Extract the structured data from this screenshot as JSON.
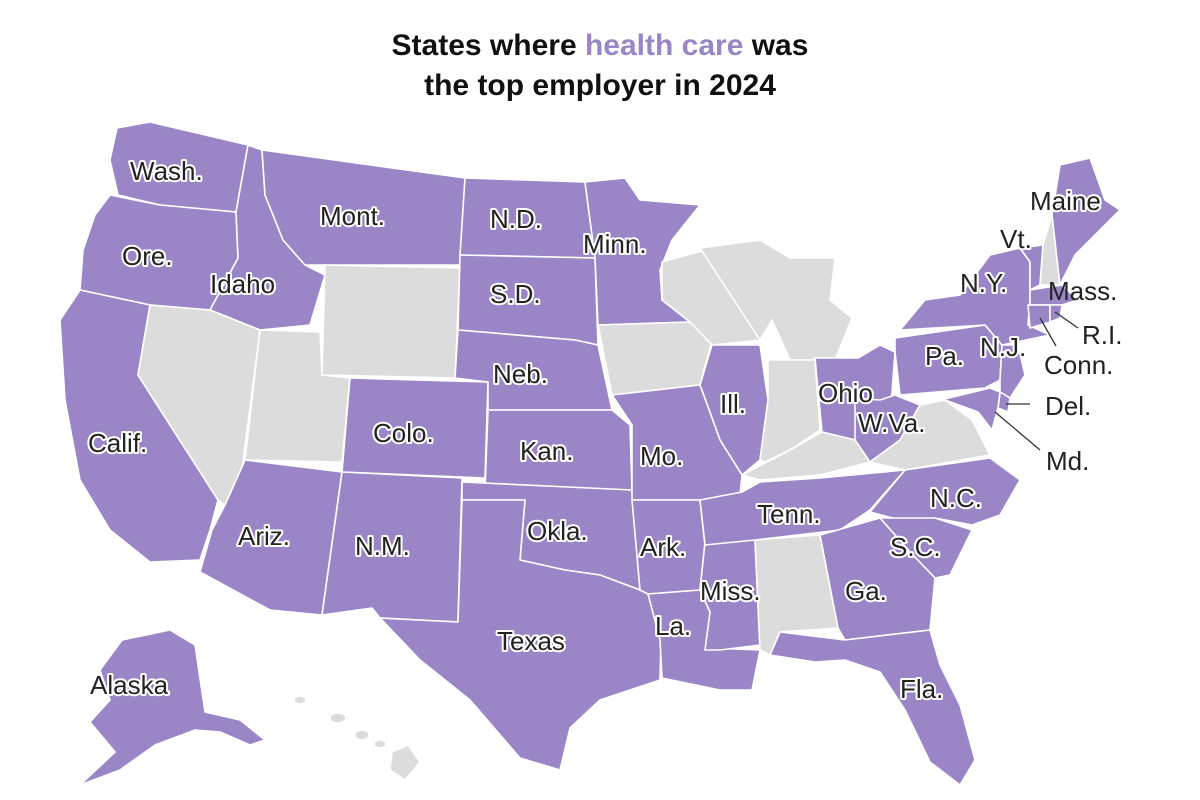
{
  "title": {
    "prefix": "States where ",
    "highlight": "health care",
    "suffix_line1": " was",
    "line2": "the top employer in 2024"
  },
  "colors": {
    "highlight": "#9a85c7",
    "other": "#dcdcdc",
    "border": "#ffffff",
    "label": "#222222"
  },
  "highlighted_states": [
    "Wash.",
    "Ore.",
    "Calif.",
    "Idaho",
    "Mont.",
    "N.D.",
    "S.D.",
    "Neb.",
    "Colo.",
    "Kan.",
    "Minn.",
    "Mo.",
    "Ill.",
    "Ohio",
    "W.Va.",
    "Pa.",
    "N.Y.",
    "Maine",
    "Vt.",
    "Mass.",
    "R.I.",
    "Conn.",
    "N.J.",
    "Del.",
    "Md.",
    "N.C.",
    "S.C.",
    "Ga.",
    "Fla.",
    "Tenn.",
    "Ark.",
    "La.",
    "Miss.",
    "Okla.",
    "Texas",
    "N.M.",
    "Ariz.",
    "Alaska"
  ],
  "non_highlighted_states": [
    "Nev.",
    "Utah",
    "Wyo.",
    "Iowa",
    "Wis.",
    "Mich.",
    "Ind.",
    "Ky.",
    "Va.",
    "Ala.",
    "N.H.",
    "Hawaii"
  ],
  "labels": {
    "wash": "Wash.",
    "ore": "Ore.",
    "calif": "Calif.",
    "idaho": "Idaho",
    "mont": "Mont.",
    "nd": "N.D.",
    "sd": "S.D.",
    "neb": "Neb.",
    "colo": "Colo.",
    "kan": "Kan.",
    "minn": "Minn.",
    "mo": "Mo.",
    "ill": "Ill.",
    "ohio": "Ohio",
    "wva": "W.Va.",
    "pa": "Pa.",
    "ny": "N.Y.",
    "maine": "Maine",
    "vt": "Vt.",
    "mass": "Mass.",
    "ri": "R.I.",
    "conn": "Conn.",
    "nj": "N.J.",
    "del": "Del.",
    "md": "Md.",
    "nc": "N.C.",
    "sc": "S.C.",
    "ga": "Ga.",
    "fla": "Fla.",
    "tenn": "Tenn.",
    "ark": "Ark.",
    "la": "La.",
    "miss": "Miss.",
    "okla": "Okla.",
    "texas": "Texas",
    "nm": "N.M.",
    "ariz": "Ariz.",
    "alaska": "Alaska"
  }
}
